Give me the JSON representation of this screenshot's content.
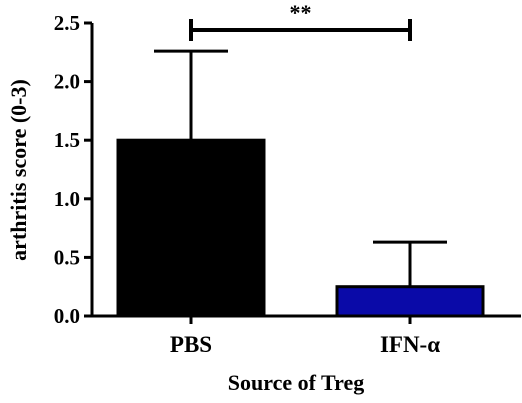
{
  "chart_data": {
    "type": "bar",
    "categories": [
      "PBS",
      "IFN-α"
    ],
    "values": [
      1.5,
      0.25
    ],
    "errors_upper": [
      0.76,
      0.38
    ],
    "colors": [
      "#000000",
      "#0a0aa8"
    ],
    "xlabel": "Source of Treg",
    "ylabel": "arthritis score (0-3)",
    "ylim": [
      0,
      2.5
    ],
    "yticks": [
      0.0,
      0.5,
      1.0,
      1.5,
      2.0,
      2.5
    ],
    "ytick_labels": [
      "0.0",
      "0.5",
      "1.0",
      "1.5",
      "2.0",
      "2.5"
    ],
    "significance": {
      "between": [
        0,
        1
      ],
      "label": "**"
    },
    "grid": false
  }
}
